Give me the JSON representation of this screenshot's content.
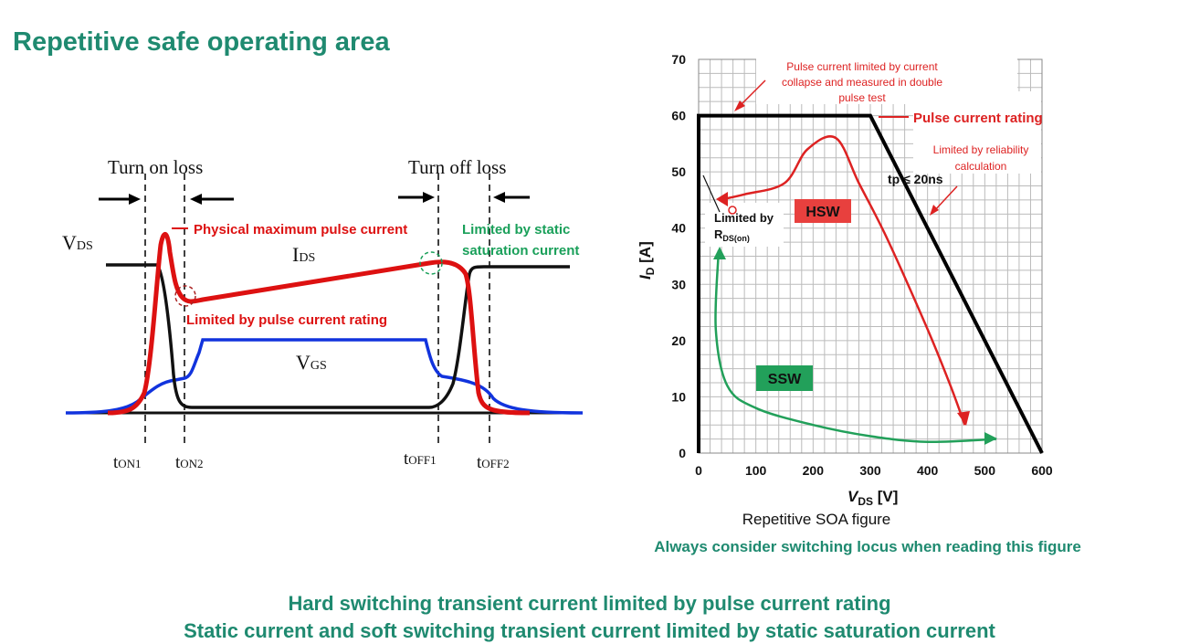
{
  "title": "Repetitive safe operating area",
  "waveform": {
    "turn_on_loss": "Turn on loss",
    "turn_off_loss": "Turn off loss",
    "vds_main": "V",
    "vds_sub": "DS",
    "ids_main": "I",
    "ids_sub": "DS",
    "vgs_main": "V",
    "vgs_sub": "GS",
    "ton1_main": "t",
    "ton1_sub": "ON1",
    "ton2_main": "t",
    "ton2_sub": "ON2",
    "toff1_main": "t",
    "toff1_sub": "OFF1",
    "toff2_main": "t",
    "toff2_sub": "OFF2",
    "annotation_physical_max": "Physical maximum pulse current",
    "annotation_pulse_rating": "Limited by pulse current rating",
    "annotation_static_line1": "Limited by static",
    "annotation_static_line2": "saturation current",
    "colors": {
      "current": "#dd1111",
      "gate": "#1133dd",
      "drain_voltage": "#111111",
      "static_note": "#1aa05a"
    }
  },
  "soa": {
    "caption": "Repetitive SOA figure",
    "note": "Always consider switching locus when reading this figure",
    "ylabel_main": "I",
    "ylabel_sub": "D",
    "ylabel_unit": " [A]",
    "xlabel_main": "V",
    "xlabel_sub": "DS",
    "xlabel_unit": " [V]",
    "annotation_collapse_line1": "Pulse current limited by current",
    "annotation_collapse_line2": "collapse and measured in double",
    "annotation_collapse_line3": "pulse test",
    "annotation_pulse_rating": "Pulse current rating",
    "annotation_reliability_line1": "Limited by reliability",
    "annotation_reliability_line2": "calculation",
    "annotation_tp": "tp ≤ 20ns",
    "annotation_rdson_line1": "Limited by",
    "annotation_rdson_main": "R",
    "annotation_rdson_sub": "DS(on)",
    "hsw_label": "HSW",
    "ssw_label": "SSW",
    "colors": {
      "hsw": "#dd2222",
      "ssw": "#22a05a",
      "grid": "#bbbbbb",
      "boundary": "#000000"
    }
  },
  "chart_data": {
    "type": "line",
    "xlabel": "VDS [V]",
    "ylabel": "ID [A]",
    "xlim": [
      0,
      600
    ],
    "ylim": [
      0,
      70
    ],
    "x_ticks": [
      0,
      100,
      200,
      300,
      400,
      500,
      600
    ],
    "y_ticks": [
      0,
      10,
      20,
      30,
      40,
      50,
      60,
      70
    ],
    "grid": true,
    "series": [
      {
        "name": "",
        "x": [
          0,
          0,
          300,
          600
        ],
        "y": [
          0,
          60,
          60,
          0
        ]
      },
      {
        "name": "HSW",
        "x": [
          35,
          80,
          150,
          190,
          240,
          280,
          330,
          400,
          440,
          465
        ],
        "y": [
          45,
          46,
          48,
          54,
          56,
          48,
          38,
          22,
          12,
          5
        ]
      },
      {
        "name": "SSW",
        "x": [
          35,
          30,
          50,
          100,
          200,
          300,
          400,
          520
        ],
        "y": [
          36,
          22,
          12,
          8,
          5,
          3,
          2,
          2.5
        ]
      }
    ]
  },
  "bottom": {
    "line1": "Hard switching transient current limited by pulse current rating",
    "line2": "Static current and soft switching transient current limited by static saturation current"
  }
}
